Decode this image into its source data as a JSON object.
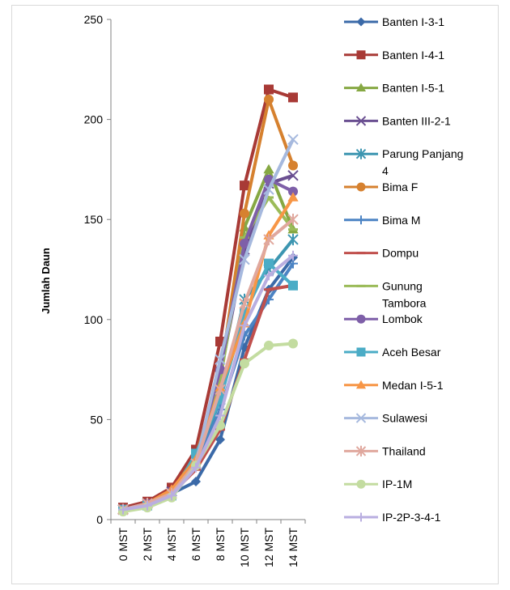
{
  "chart_data": {
    "type": "line",
    "title": "",
    "xlabel": "",
    "ylabel": "Jumlah Daun",
    "ylim": [
      0,
      250
    ],
    "yticks": [
      "0",
      "50",
      "100",
      "150",
      "200",
      "250"
    ],
    "categories": [
      "0 MST",
      "2 MST",
      "4 MST",
      "6 MST",
      "8 MST",
      "10 MST",
      "12 MST",
      "14 MST"
    ],
    "grid": false,
    "legend": "right",
    "series": [
      {
        "name": "Banten I-3-1",
        "color": "#3b6aa8",
        "marker": "diamond",
        "values": [
          5,
          8,
          13,
          19,
          40,
          86,
          115,
          131
        ]
      },
      {
        "name": "Banten I-4-1",
        "color": "#a83a36",
        "marker": "square",
        "values": [
          6,
          9,
          16,
          35,
          89,
          167,
          215,
          211
        ]
      },
      {
        "name": "Banten I-5-1",
        "color": "#86a843",
        "marker": "triangle",
        "values": [
          5,
          8,
          14,
          31,
          74,
          146,
          175,
          145
        ]
      },
      {
        "name": "Banten III-2-1",
        "color": "#6a4f91",
        "marker": "x",
        "values": [
          5,
          8,
          14,
          30,
          72,
          135,
          168,
          172
        ]
      },
      {
        "name": "Parung Panjang 4",
        "color": "#3d96b1",
        "marker": "star",
        "values": [
          5,
          8,
          13,
          28,
          60,
          110,
          125,
          140
        ]
      },
      {
        "name": "Bima F",
        "color": "#d6812f",
        "marker": "circle",
        "values": [
          5,
          8,
          14,
          32,
          72,
          153,
          210,
          177
        ]
      },
      {
        "name": "Bima M",
        "color": "#4c84c4",
        "marker": "plus",
        "values": [
          5,
          8,
          13,
          27,
          55,
          92,
          110,
          128
        ]
      },
      {
        "name": "Dompu",
        "color": "#c0504d",
        "marker": "dash",
        "values": [
          5,
          8,
          13,
          25,
          45,
          80,
          115,
          117
        ]
      },
      {
        "name": "Gunung Tambora",
        "color": "#9bbb59",
        "marker": "dash",
        "values": [
          5,
          8,
          14,
          30,
          70,
          141,
          161,
          145
        ]
      },
      {
        "name": "Lombok",
        "color": "#7e5fa8",
        "marker": "circle",
        "values": [
          5,
          8,
          14,
          30,
          75,
          138,
          170,
          164
        ]
      },
      {
        "name": "Aceh Besar",
        "color": "#4bacc6",
        "marker": "square",
        "values": [
          5,
          7,
          12,
          33,
          60,
          103,
          128,
          117
        ]
      },
      {
        "name": "Medan I-5-1",
        "color": "#f79646",
        "marker": "triangle",
        "values": [
          5,
          8,
          15,
          30,
          66,
          98,
          142,
          161
        ]
      },
      {
        "name": "Sulawesi",
        "color": "#a6b9de",
        "marker": "x",
        "values": [
          5,
          8,
          13,
          28,
          80,
          130,
          165,
          190
        ]
      },
      {
        "name": "Thailand",
        "color": "#e0a89e",
        "marker": "star",
        "values": [
          5,
          8,
          13,
          28,
          65,
          108,
          140,
          150
        ]
      },
      {
        "name": "IP-1M",
        "color": "#c3dca0",
        "marker": "circle",
        "values": [
          4,
          6,
          11,
          27,
          47,
          78,
          87,
          88
        ]
      },
      {
        "name": "IP-2P-3-4-1",
        "color": "#b9aee0",
        "marker": "plus",
        "values": [
          5,
          7,
          12,
          26,
          52,
          97,
          122,
          132
        ]
      }
    ]
  }
}
